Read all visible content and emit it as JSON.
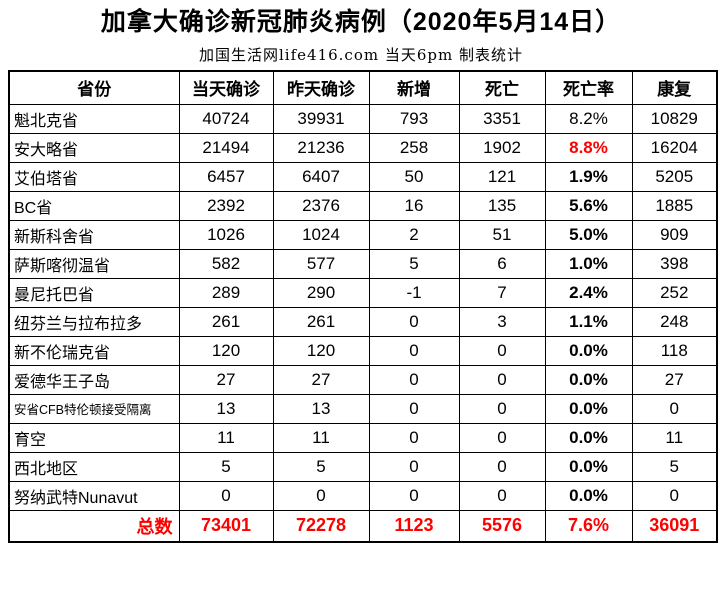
{
  "title": "加拿大确诊新冠肺炎病例（2020年5月14日）",
  "subtitle": "加国生活网life416.com 当天6pm 制表统计",
  "colors": {
    "accent_red": "#ff0000",
    "border": "#000000",
    "background": "#ffffff"
  },
  "table": {
    "headers": [
      "省份",
      "当天确诊",
      "昨天确诊",
      "新增",
      "死亡",
      "死亡率",
      "康复"
    ],
    "rows": [
      {
        "province": "魁北克省",
        "today": 40724,
        "yesterday": 39931,
        "new": 793,
        "deaths": 3351,
        "death_rate": "8.2%",
        "recovered": 10829,
        "death_rate_style": "normal",
        "small_label": false
      },
      {
        "province": "安大略省",
        "today": 21494,
        "yesterday": 21236,
        "new": 258,
        "deaths": 1902,
        "death_rate": "8.8%",
        "recovered": 16204,
        "death_rate_style": "red-bold",
        "small_label": false
      },
      {
        "province": "艾伯塔省",
        "today": 6457,
        "yesterday": 6407,
        "new": 50,
        "deaths": 121,
        "death_rate": "1.9%",
        "recovered": 5205,
        "death_rate_style": "bold",
        "small_label": false
      },
      {
        "province": "BC省",
        "today": 2392,
        "yesterday": 2376,
        "new": 16,
        "deaths": 135,
        "death_rate": "5.6%",
        "recovered": 1885,
        "death_rate_style": "bold",
        "small_label": false
      },
      {
        "province": "新斯科舍省",
        "today": 1026,
        "yesterday": 1024,
        "new": 2,
        "deaths": 51,
        "death_rate": "5.0%",
        "recovered": 909,
        "death_rate_style": "bold",
        "small_label": false
      },
      {
        "province": "萨斯喀彻温省",
        "today": 582,
        "yesterday": 577,
        "new": 5,
        "deaths": 6,
        "death_rate": "1.0%",
        "recovered": 398,
        "death_rate_style": "bold",
        "small_label": false
      },
      {
        "province": "曼尼托巴省",
        "today": 289,
        "yesterday": 290,
        "new": -1,
        "deaths": 7,
        "death_rate": "2.4%",
        "recovered": 252,
        "death_rate_style": "bold",
        "small_label": false
      },
      {
        "province": "纽芬兰与拉布拉多",
        "today": 261,
        "yesterday": 261,
        "new": 0,
        "deaths": 3,
        "death_rate": "1.1%",
        "recovered": 248,
        "death_rate_style": "bold",
        "small_label": false
      },
      {
        "province": "新不伦瑞克省",
        "today": 120,
        "yesterday": 120,
        "new": 0,
        "deaths": 0,
        "death_rate": "0.0%",
        "recovered": 118,
        "death_rate_style": "bold",
        "small_label": false
      },
      {
        "province": "爱德华王子岛",
        "today": 27,
        "yesterday": 27,
        "new": 0,
        "deaths": 0,
        "death_rate": "0.0%",
        "recovered": 27,
        "death_rate_style": "bold",
        "small_label": false
      },
      {
        "province": "安省CFB特伦顿接受隔离",
        "today": 13,
        "yesterday": 13,
        "new": 0,
        "deaths": 0,
        "death_rate": "0.0%",
        "recovered": 0,
        "death_rate_style": "bold",
        "small_label": true
      },
      {
        "province": "育空",
        "today": 11,
        "yesterday": 11,
        "new": 0,
        "deaths": 0,
        "death_rate": "0.0%",
        "recovered": 11,
        "death_rate_style": "bold",
        "small_label": false
      },
      {
        "province": "西北地区",
        "today": 5,
        "yesterday": 5,
        "new": 0,
        "deaths": 0,
        "death_rate": "0.0%",
        "recovered": 5,
        "death_rate_style": "bold",
        "small_label": false
      },
      {
        "province": "努纳武特Nunavut",
        "today": 0,
        "yesterday": 0,
        "new": 0,
        "deaths": 0,
        "death_rate": "0.0%",
        "recovered": 0,
        "death_rate_style": "bold",
        "small_label": false
      }
    ],
    "total": {
      "label": "总数",
      "today": 73401,
      "yesterday": 72278,
      "new": 1123,
      "deaths": 5576,
      "death_rate": "7.6%",
      "recovered": 36091
    }
  },
  "chart_data": {
    "type": "table",
    "title": "加拿大确诊新冠肺炎病例（2020年5月14日）",
    "subtitle": "加国生活网life416.com 当天6pm 制表统计",
    "columns": [
      "省份",
      "当天确诊",
      "昨天确诊",
      "新增",
      "死亡",
      "死亡率",
      "康复"
    ],
    "rows": [
      [
        "魁北克省",
        40724,
        39931,
        793,
        3351,
        "8.2%",
        10829
      ],
      [
        "安大略省",
        21494,
        21236,
        258,
        1902,
        "8.8%",
        16204
      ],
      [
        "艾伯塔省",
        6457,
        6407,
        50,
        121,
        "1.9%",
        5205
      ],
      [
        "BC省",
        2392,
        2376,
        16,
        135,
        "5.6%",
        1885
      ],
      [
        "新斯科舍省",
        1026,
        1024,
        2,
        51,
        "5.0%",
        909
      ],
      [
        "萨斯喀彻温省",
        582,
        577,
        5,
        6,
        "1.0%",
        398
      ],
      [
        "曼尼托巴省",
        289,
        290,
        -1,
        7,
        "2.4%",
        252
      ],
      [
        "纽芬兰与拉布拉多",
        261,
        261,
        0,
        3,
        "1.1%",
        248
      ],
      [
        "新不伦瑞克省",
        120,
        120,
        0,
        0,
        "0.0%",
        118
      ],
      [
        "爱德华王子岛",
        27,
        27,
        0,
        0,
        "0.0%",
        27
      ],
      [
        "安省CFB特伦顿接受隔离",
        13,
        13,
        0,
        0,
        "0.0%",
        0
      ],
      [
        "育空",
        11,
        11,
        0,
        0,
        "0.0%",
        11
      ],
      [
        "西北地区",
        5,
        5,
        0,
        0,
        "0.0%",
        5
      ],
      [
        "努纳武特Nunavut",
        0,
        0,
        0,
        0,
        "0.0%",
        0
      ],
      [
        "总数",
        73401,
        72278,
        1123,
        5576,
        "7.6%",
        36091
      ]
    ]
  }
}
